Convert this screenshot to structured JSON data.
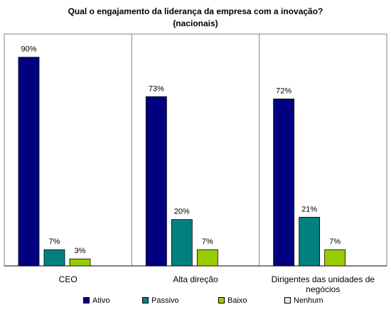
{
  "chart_data": {
    "type": "bar",
    "title": [
      "Qual o engajamento da liderança da empresa com a inovação?",
      "(nacionais)"
    ],
    "categories": [
      "CEO",
      "Alta direção",
      "Dirigentes das unidades de negócios"
    ],
    "series": [
      {
        "name": "Ativo",
        "values": [
          90,
          73,
          72
        ],
        "color": "#000080"
      },
      {
        "name": "Passivo",
        "values": [
          7,
          20,
          21
        ],
        "color": "#008080"
      },
      {
        "name": "Baixo",
        "values": [
          3,
          7,
          7
        ],
        "color": "#99cc00"
      },
      {
        "name": "Nenhum",
        "values": [
          0,
          0,
          0
        ],
        "color": "#ccffcc"
      }
    ],
    "value_suffix": "%",
    "ylim": [
      0,
      100
    ],
    "grid": false,
    "legend": "bottom"
  }
}
